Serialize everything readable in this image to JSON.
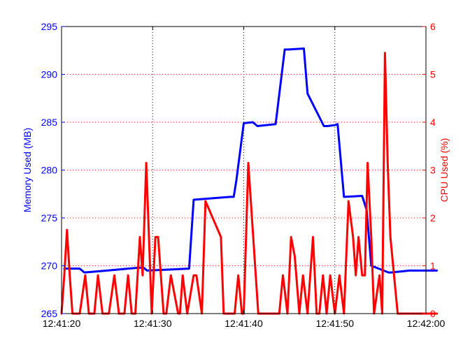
{
  "colors": {
    "memory": "#0000ff",
    "cpu": "#ff0000",
    "axes": "#000000",
    "grid": "#000000",
    "background": "#ffffff"
  },
  "chart_data": {
    "type": "line",
    "title": "",
    "xlabel": "",
    "x_ticks": [
      "12:41:20",
      "12:41:30",
      "12:41:40",
      "12:41:50",
      "12:42:00"
    ],
    "xlim": [
      0,
      40
    ],
    "grid": true,
    "y_left": {
      "label": "Memory Used (MB)",
      "lim": [
        265,
        295
      ],
      "ticks": [
        265,
        270,
        275,
        280,
        285,
        290,
        295
      ]
    },
    "y_right": {
      "label": "CPU Used (%)",
      "lim": [
        0,
        6
      ],
      "ticks": [
        0,
        1,
        2,
        3,
        4,
        5,
        6
      ]
    },
    "series": [
      {
        "name": "Memory Used (MB)",
        "axis": "left",
        "color": "#0000ff",
        "x": [
          0.3,
          2.0,
          2.5,
          5.0,
          8.5,
          9.0,
          9.4,
          14.0,
          14.5,
          18.5,
          18.9,
          19.2,
          20.0,
          21.0,
          21.5,
          23.5,
          24.5,
          24.9,
          26.6,
          27.0,
          28.8,
          29.2,
          30.0,
          30.3,
          31.0,
          33.0,
          33.5,
          34.0,
          35.9,
          36.2,
          37.2,
          38.2,
          40.0,
          41.2
        ],
        "y": [
          269.7,
          269.7,
          269.3,
          269.5,
          269.8,
          269.8,
          269.5,
          269.7,
          276.9,
          277.2,
          277.2,
          279.0,
          284.9,
          285.0,
          284.6,
          284.8,
          292.6,
          292.6,
          292.7,
          288.0,
          284.6,
          284.6,
          284.7,
          284.8,
          277.2,
          277.3,
          275.8,
          270.0,
          269.3,
          269.3,
          269.4,
          269.5,
          269.5,
          269.5
        ]
      },
      {
        "name": "CPU Used (%)",
        "axis": "right",
        "color": "#ff0000",
        "x": [
          0.0,
          0.3,
          0.6,
          0.9,
          1.2,
          2.0,
          2.6,
          3.0,
          3.6,
          4.0,
          4.5,
          5.2,
          5.8,
          6.3,
          6.9,
          7.3,
          7.7,
          8.1,
          8.6,
          8.9,
          9.3,
          9.6,
          9.9,
          10.3,
          10.6,
          11.2,
          11.5,
          12.0,
          12.8,
          13.0,
          13.3,
          13.8,
          14.5,
          14.8,
          15.4,
          15.8,
          17.5,
          17.8,
          18.1,
          19.0,
          19.4,
          19.8,
          20.0,
          20.5,
          21.6,
          23.0,
          23.5,
          23.9,
          24.3,
          24.8,
          25.2,
          25.6,
          26.1,
          26.5,
          27.0,
          27.6,
          28.0,
          28.3,
          28.7,
          29.1,
          29.5,
          30.0,
          30.5,
          31.0,
          31.5,
          32.0,
          32.3,
          32.6,
          33.0,
          33.3,
          33.6,
          34.0,
          34.3,
          34.9,
          35.2,
          35.5,
          35.8,
          36.1,
          36.5,
          36.9,
          37.3,
          37.6,
          37.9,
          38.2,
          38.6,
          39.1,
          40.0,
          40.8,
          41.2
        ],
        "y": [
          0.0,
          0.8,
          1.75,
          0.8,
          0.0,
          0.0,
          0.8,
          0.0,
          0.0,
          0.8,
          0.0,
          0.0,
          0.8,
          0.0,
          0.0,
          0.8,
          0.0,
          0.0,
          1.6,
          0.8,
          3.15,
          1.6,
          0.0,
          1.6,
          1.6,
          0.0,
          0.0,
          0.8,
          0.0,
          0.0,
          0.8,
          0.0,
          0.8,
          0.8,
          0.0,
          2.35,
          1.6,
          0.0,
          0.0,
          0.0,
          0.8,
          0.0,
          0.0,
          3.15,
          0.0,
          0.0,
          0.0,
          0.0,
          0.8,
          0.0,
          1.6,
          1.2,
          0.0,
          0.8,
          0.0,
          1.6,
          0.0,
          0.0,
          0.8,
          0.0,
          0.8,
          0.0,
          0.8,
          0.0,
          2.35,
          1.6,
          0.8,
          1.6,
          0.8,
          0.8,
          3.15,
          1.6,
          0.0,
          0.8,
          0.0,
          5.45,
          3.15,
          1.6,
          0.8,
          0.0,
          0.0,
          0.0,
          0.0,
          0.0,
          0.0,
          0.0,
          0.0,
          0.0,
          0.0
        ]
      }
    ]
  }
}
